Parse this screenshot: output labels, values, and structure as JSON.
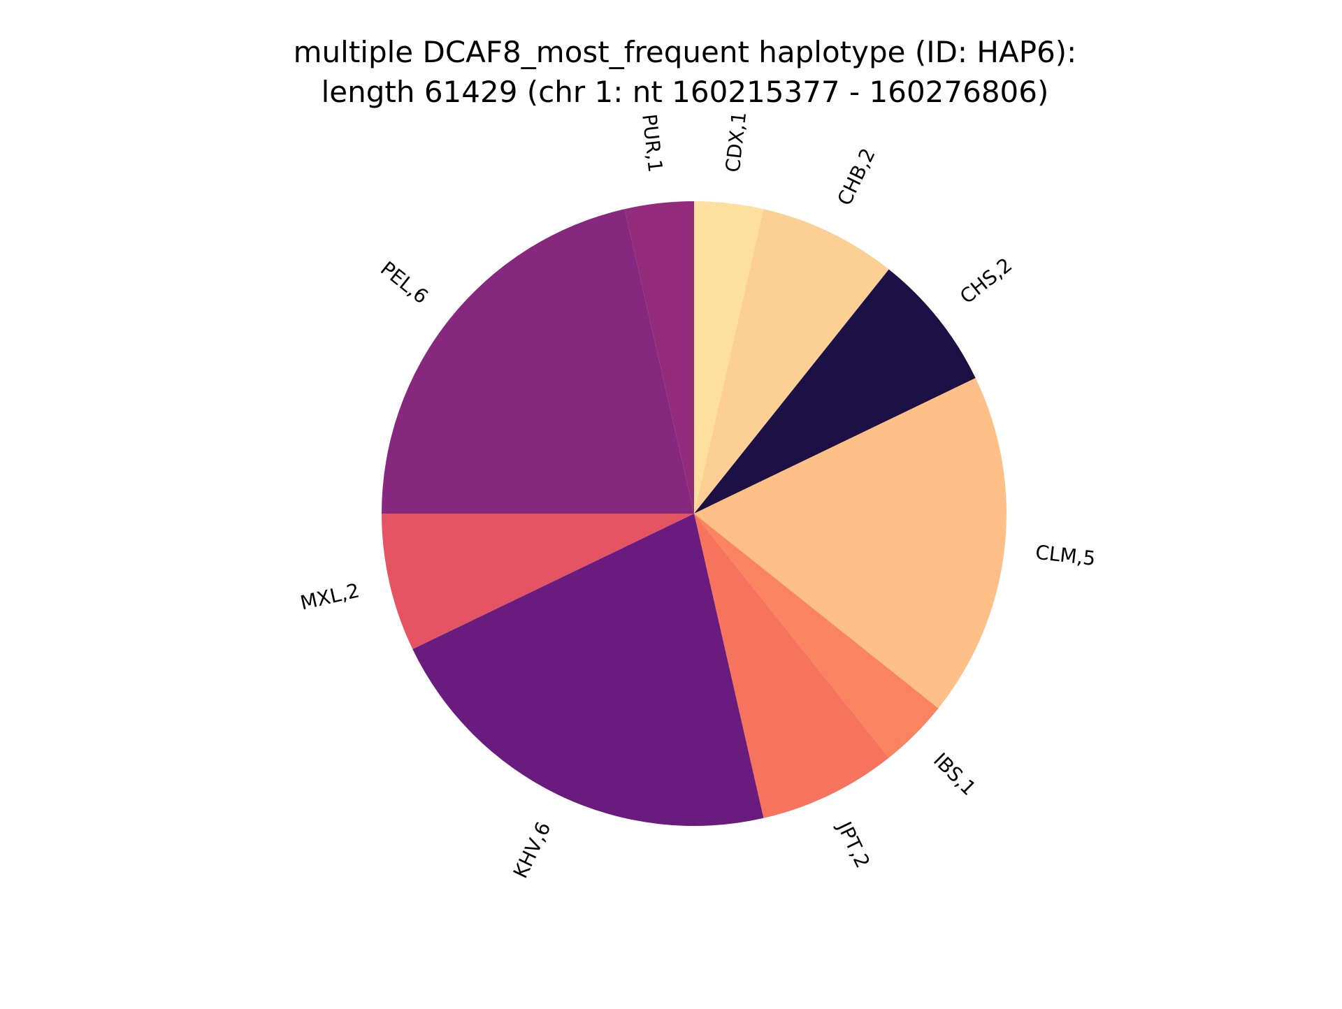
{
  "chart_data": {
    "type": "pie",
    "title_line1": "multiple DCAF8_most_frequent haplotype (ID: HAP6):",
    "title_line2": "length 61429 (chr 1: nt 160215377 - 160276806)",
    "start_angle": 90,
    "direction": "clockwise",
    "slices": [
      {
        "label": "CDX,1",
        "value": 1,
        "color": "#fde0a0"
      },
      {
        "label": "CHB,2",
        "value": 2,
        "color": "#fcd095"
      },
      {
        "label": "CHS,2",
        "value": 2,
        "color": "#1c1044"
      },
      {
        "label": "CLM,5",
        "value": 5,
        "color": "#fec086"
      },
      {
        "label": "IBS,1",
        "value": 1,
        "color": "#fa8460"
      },
      {
        "label": "JPT,2",
        "value": 2,
        "color": "#f6735d"
      },
      {
        "label": "KHV,6",
        "value": 6,
        "color": "#6a1b7e"
      },
      {
        "label": "MXL,2",
        "value": 2,
        "color": "#e55463"
      },
      {
        "label": "PEL,6",
        "value": 6,
        "color": "#86287e"
      },
      {
        "label": "PUR,1",
        "value": 1,
        "color": "#932b7b"
      }
    ]
  }
}
